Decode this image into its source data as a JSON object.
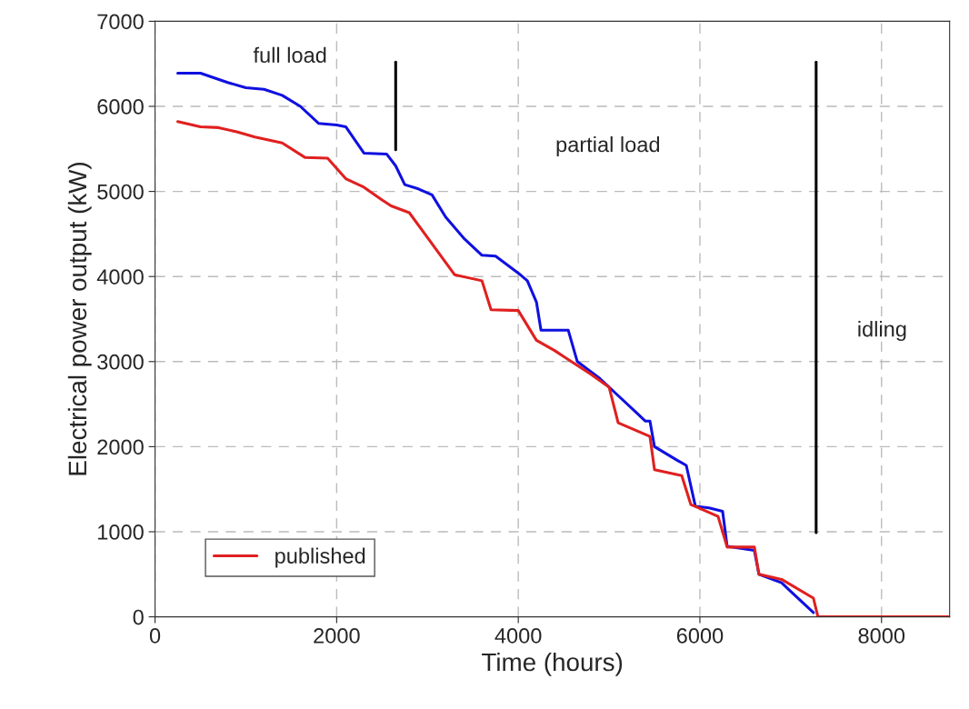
{
  "chart_data": {
    "type": "line",
    "xlabel": "Time (hours)",
    "ylabel": "Electrical power output (kW)",
    "xlim": [
      0,
      8750
    ],
    "ylim": [
      0,
      7000
    ],
    "xticks": [
      0,
      2000,
      4000,
      6000,
      8000
    ],
    "yticks": [
      0,
      1000,
      2000,
      3000,
      4000,
      5000,
      6000,
      7000
    ],
    "grid": true,
    "legend": "bottom left",
    "line_style": "solid",
    "marker": "none",
    "series": [
      {
        "color": "#1010e0",
        "x": [
          250,
          500,
          800,
          1000,
          1200,
          1400,
          1600,
          1800,
          2000,
          2100,
          2300,
          2550,
          2650,
          2750,
          2900,
          3050,
          3200,
          3400,
          3600,
          3750,
          4000,
          4100,
          4200,
          4250,
          4550,
          4650,
          4900,
          5100,
          5300,
          5400,
          5450,
          5500,
          5750,
          5850,
          5950,
          6100,
          6250,
          6300,
          6600,
          6650,
          6900,
          7000,
          7250
        ],
        "values": [
          6390,
          6390,
          6280,
          6220,
          6200,
          6130,
          6000,
          5800,
          5780,
          5760,
          5450,
          5440,
          5300,
          5080,
          5030,
          4960,
          4700,
          4450,
          4250,
          4240,
          4040,
          3950,
          3700,
          3370,
          3370,
          3000,
          2800,
          2600,
          2400,
          2300,
          2300,
          2000,
          1840,
          1780,
          1300,
          1280,
          1240,
          830,
          780,
          500,
          400,
          300,
          50
        ]
      },
      {
        "name": "published",
        "color": "#e02020",
        "x": [
          250,
          500,
          700,
          900,
          1100,
          1400,
          1650,
          1900,
          2100,
          2300,
          2500,
          2600,
          2800,
          3300,
          3600,
          3700,
          4000,
          4200,
          4400,
          4500,
          4800,
          5000,
          5100,
          5450,
          5500,
          5800,
          5900,
          6200,
          6300,
          6600,
          6650,
          6900,
          7250,
          7300,
          8750
        ],
        "values": [
          5820,
          5760,
          5750,
          5700,
          5640,
          5570,
          5400,
          5390,
          5150,
          5050,
          4900,
          4830,
          4750,
          4020,
          3950,
          3610,
          3600,
          3250,
          3130,
          3060,
          2850,
          2700,
          2280,
          2120,
          1730,
          1660,
          1320,
          1180,
          820,
          820,
          500,
          440,
          220,
          0,
          0
        ]
      },
      {
        "color": "#000000",
        "x": [
          2650,
          2650
        ],
        "values": [
          6520,
          5490
        ]
      },
      {
        "color": "#000000",
        "x": [
          7280,
          7280
        ],
        "values": [
          6520,
          990
        ]
      }
    ],
    "annotations": [
      "full load",
      "partial load",
      "idling"
    ]
  }
}
